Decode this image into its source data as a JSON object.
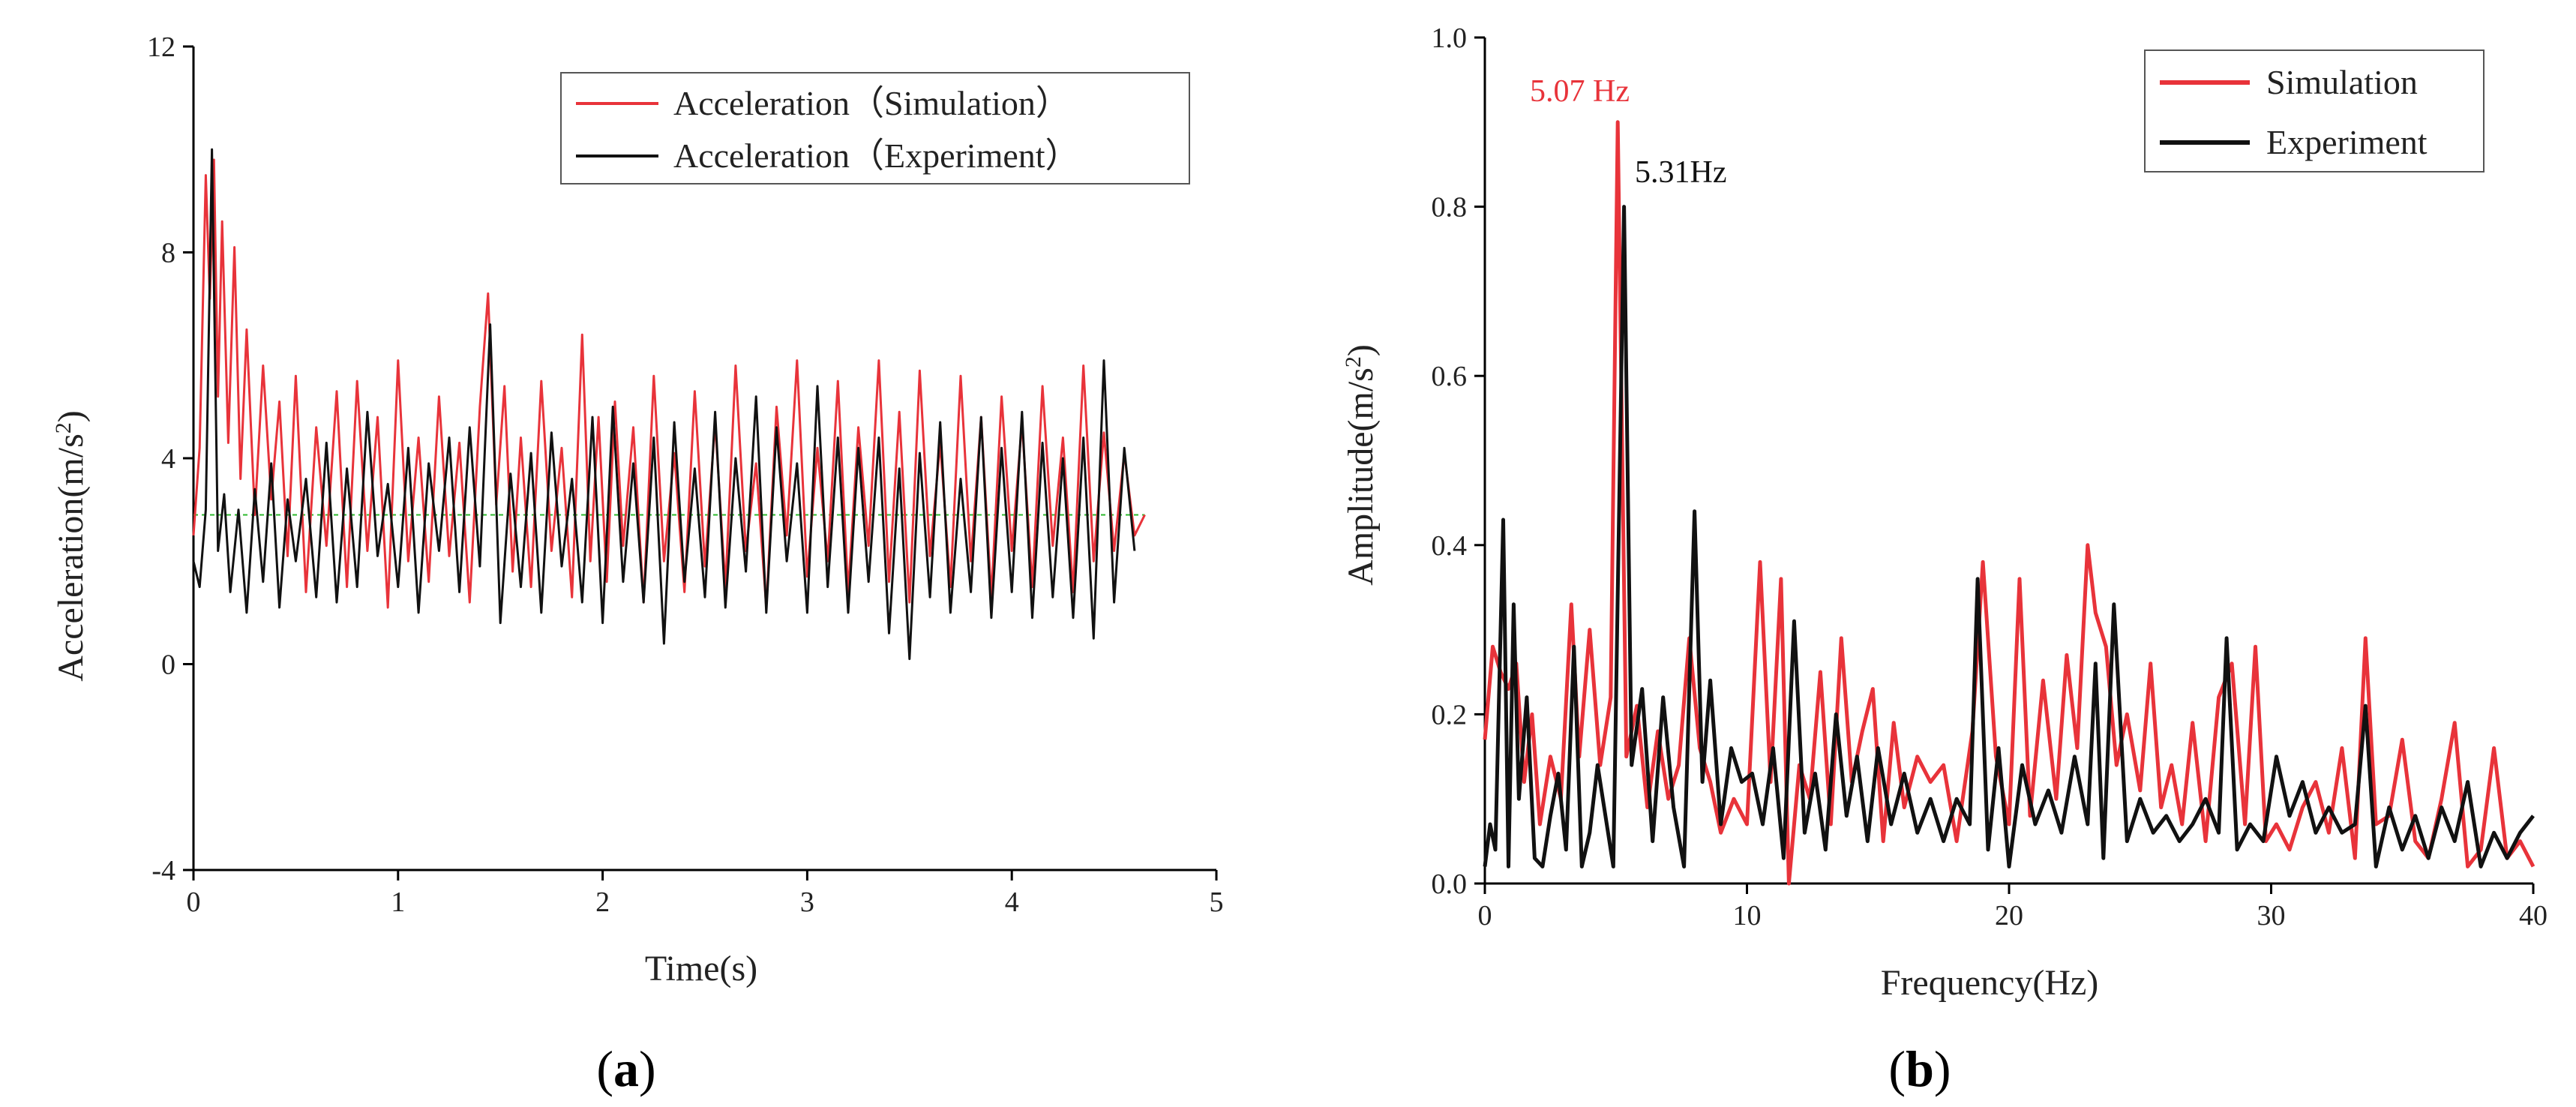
{
  "chart_data": [
    {
      "id": "a",
      "type": "line",
      "panel_label": "a",
      "title": "",
      "xlabel": "Time(s)",
      "ylabel_prefix": "Acceleration(m/s",
      "ylabel_sup": "2",
      "ylabel_suffix": ")",
      "xlim": [
        0,
        5
      ],
      "ylim": [
        -4,
        12
      ],
      "xticks": [
        0,
        1,
        2,
        3,
        4,
        5
      ],
      "yticks": [
        -4,
        0,
        4,
        8,
        12
      ],
      "legend_position": "top-right",
      "series": [
        {
          "name": "Acceleration（Simulation）",
          "color": "#e8333a",
          "x": [
            0.0,
            0.03,
            0.06,
            0.08,
            0.1,
            0.12,
            0.14,
            0.17,
            0.2,
            0.23,
            0.26,
            0.3,
            0.34,
            0.38,
            0.42,
            0.46,
            0.5,
            0.55,
            0.6,
            0.65,
            0.7,
            0.75,
            0.8,
            0.85,
            0.9,
            0.95,
            1.0,
            1.05,
            1.1,
            1.15,
            1.2,
            1.25,
            1.3,
            1.35,
            1.4,
            1.44,
            1.48,
            1.52,
            1.56,
            1.6,
            1.65,
            1.7,
            1.75,
            1.8,
            1.85,
            1.9,
            1.94,
            1.98,
            2.02,
            2.06,
            2.1,
            2.15,
            2.2,
            2.25,
            2.3,
            2.35,
            2.4,
            2.45,
            2.5,
            2.55,
            2.6,
            2.65,
            2.7,
            2.75,
            2.8,
            2.85,
            2.9,
            2.95,
            3.0,
            3.05,
            3.1,
            3.15,
            3.2,
            3.25,
            3.3,
            3.35,
            3.4,
            3.45,
            3.5,
            3.55,
            3.6,
            3.65,
            3.7,
            3.75,
            3.8,
            3.85,
            3.9,
            3.95,
            4.0,
            4.05,
            4.1,
            4.15,
            4.2,
            4.25,
            4.3,
            4.35,
            4.4,
            4.45,
            4.5,
            4.55,
            4.6,
            4.65
          ],
          "y": [
            2.5,
            4.2,
            9.5,
            7.1,
            9.8,
            5.2,
            8.6,
            4.3,
            8.1,
            3.6,
            6.5,
            2.9,
            5.8,
            3.2,
            5.1,
            2.1,
            5.6,
            1.4,
            4.6,
            2.3,
            5.3,
            1.5,
            5.5,
            2.2,
            4.8,
            1.1,
            5.9,
            2.0,
            4.4,
            1.6,
            5.2,
            2.1,
            4.3,
            1.2,
            5.0,
            7.2,
            3.1,
            5.4,
            1.8,
            4.4,
            1.5,
            5.5,
            2.2,
            4.2,
            1.3,
            6.4,
            2.0,
            4.8,
            1.6,
            5.1,
            2.3,
            4.6,
            1.2,
            5.6,
            2.0,
            4.1,
            1.4,
            5.3,
            1.9,
            4.7,
            1.5,
            5.8,
            2.2,
            3.9,
            1.1,
            5.0,
            2.5,
            5.9,
            1.7,
            4.2,
            2.0,
            5.5,
            1.4,
            4.6,
            2.3,
            5.9,
            1.6,
            4.9,
            1.2,
            5.7,
            2.1,
            4.3,
            1.5,
            5.6,
            2.0,
            4.8,
            1.3,
            5.2,
            2.2,
            4.7,
            1.5,
            5.4,
            2.3,
            4.4,
            1.4,
            5.8,
            2.0,
            4.5,
            2.2,
            4.1,
            2.5,
            2.9
          ]
        },
        {
          "name": "Acceleration（Experiment）",
          "color": "#111111",
          "x": [
            0.0,
            0.03,
            0.06,
            0.09,
            0.12,
            0.15,
            0.18,
            0.22,
            0.26,
            0.3,
            0.34,
            0.38,
            0.42,
            0.46,
            0.5,
            0.55,
            0.6,
            0.65,
            0.7,
            0.75,
            0.8,
            0.85,
            0.9,
            0.95,
            1.0,
            1.05,
            1.1,
            1.15,
            1.2,
            1.25,
            1.3,
            1.35,
            1.4,
            1.45,
            1.5,
            1.55,
            1.6,
            1.65,
            1.7,
            1.75,
            1.8,
            1.85,
            1.9,
            1.95,
            2.0,
            2.05,
            2.1,
            2.15,
            2.2,
            2.25,
            2.3,
            2.35,
            2.4,
            2.45,
            2.5,
            2.55,
            2.6,
            2.65,
            2.7,
            2.75,
            2.8,
            2.85,
            2.9,
            2.95,
            3.0,
            3.05,
            3.1,
            3.15,
            3.2,
            3.25,
            3.3,
            3.35,
            3.4,
            3.45,
            3.5,
            3.55,
            3.6,
            3.65,
            3.7,
            3.75,
            3.8,
            3.85,
            3.9,
            3.95,
            4.0,
            4.05,
            4.1,
            4.15,
            4.2,
            4.25,
            4.3,
            4.35,
            4.4,
            4.45,
            4.5,
            4.55,
            4.6
          ],
          "y": [
            2.0,
            1.5,
            3.0,
            10.0,
            2.2,
            3.3,
            1.4,
            3.0,
            1.0,
            3.4,
            1.6,
            3.9,
            1.1,
            3.2,
            2.0,
            3.6,
            1.3,
            4.3,
            1.2,
            3.8,
            1.5,
            4.9,
            2.1,
            3.5,
            1.5,
            4.2,
            1.0,
            3.9,
            2.2,
            4.4,
            1.4,
            4.6,
            1.9,
            6.6,
            0.8,
            3.7,
            1.5,
            4.1,
            1.0,
            4.5,
            1.9,
            3.6,
            1.2,
            4.8,
            0.8,
            5.0,
            1.6,
            3.9,
            1.2,
            4.4,
            0.4,
            4.7,
            1.6,
            3.8,
            1.3,
            4.9,
            1.1,
            4.0,
            1.8,
            5.2,
            1.0,
            4.6,
            2.0,
            3.9,
            1.0,
            5.4,
            1.5,
            4.4,
            1.0,
            4.2,
            1.6,
            4.4,
            0.6,
            3.8,
            0.1,
            4.1,
            1.3,
            4.7,
            1.0,
            3.6,
            1.4,
            4.8,
            0.9,
            4.2,
            1.4,
            4.9,
            0.9,
            4.3,
            1.3,
            4.0,
            0.9,
            4.4,
            0.5,
            5.9,
            1.2,
            4.2,
            2.2
          ]
        }
      ],
      "reference_line": {
        "y": 2.9,
        "color": "#2db82d"
      }
    },
    {
      "id": "b",
      "type": "line",
      "panel_label": "b",
      "title": "",
      "xlabel": "Frequency(Hz)",
      "ylabel_prefix": "Amplitude(m/s",
      "ylabel_sup": "2",
      "ylabel_suffix": ")",
      "xlim": [
        0,
        40
      ],
      "ylim": [
        0,
        1.0
      ],
      "xticks": [
        0,
        10,
        20,
        30,
        40
      ],
      "yticks": [
        0.0,
        0.2,
        0.4,
        0.6,
        0.8,
        1.0
      ],
      "ytick_labels": [
        "0.0",
        "0.2",
        "0.4",
        "0.6",
        "0.8",
        "1.0"
      ],
      "legend_position": "top-right",
      "annotations": [
        {
          "text": "5.07 Hz",
          "x": 5.07,
          "y": 0.9,
          "color": "#e8333a"
        },
        {
          "text": "5.31Hz",
          "x": 5.31,
          "y": 0.8,
          "color": "#111111"
        }
      ],
      "series": [
        {
          "name": "Simulation",
          "color": "#e8333a",
          "x": [
            0.0,
            0.3,
            0.6,
            0.9,
            1.2,
            1.5,
            1.8,
            2.1,
            2.5,
            2.9,
            3.3,
            3.6,
            4.0,
            4.4,
            4.8,
            5.07,
            5.4,
            5.8,
            6.2,
            6.6,
            7.0,
            7.4,
            7.8,
            8.2,
            8.6,
            9.0,
            9.5,
            10.0,
            10.5,
            10.9,
            11.3,
            11.6,
            12.0,
            12.4,
            12.8,
            13.2,
            13.6,
            14.0,
            14.4,
            14.8,
            15.2,
            15.6,
            16.0,
            16.5,
            17.0,
            17.5,
            18.0,
            18.6,
            19.0,
            19.5,
            20.0,
            20.4,
            20.8,
            21.3,
            21.8,
            22.2,
            22.6,
            23.0,
            23.3,
            23.7,
            24.1,
            24.5,
            25.0,
            25.4,
            25.8,
            26.2,
            26.6,
            27.0,
            27.5,
            28.0,
            28.5,
            29.0,
            29.4,
            29.8,
            30.2,
            30.7,
            31.2,
            31.7,
            32.2,
            32.7,
            33.2,
            33.6,
            34.0,
            34.5,
            35.0,
            35.5,
            36.0,
            36.5,
            37.0,
            37.5,
            38.0,
            38.5,
            39.0,
            39.5,
            40.0
          ],
          "y": [
            0.17,
            0.28,
            0.25,
            0.23,
            0.26,
            0.12,
            0.2,
            0.07,
            0.15,
            0.1,
            0.33,
            0.15,
            0.3,
            0.14,
            0.22,
            0.9,
            0.15,
            0.21,
            0.09,
            0.18,
            0.1,
            0.14,
            0.29,
            0.16,
            0.12,
            0.06,
            0.1,
            0.07,
            0.38,
            0.12,
            0.36,
            0.0,
            0.14,
            0.1,
            0.25,
            0.07,
            0.29,
            0.12,
            0.18,
            0.23,
            0.05,
            0.19,
            0.09,
            0.15,
            0.12,
            0.14,
            0.05,
            0.18,
            0.38,
            0.15,
            0.07,
            0.36,
            0.08,
            0.24,
            0.1,
            0.27,
            0.16,
            0.4,
            0.32,
            0.28,
            0.14,
            0.2,
            0.11,
            0.26,
            0.09,
            0.14,
            0.07,
            0.19,
            0.05,
            0.22,
            0.26,
            0.07,
            0.28,
            0.05,
            0.07,
            0.04,
            0.09,
            0.12,
            0.06,
            0.16,
            0.03,
            0.29,
            0.07,
            0.08,
            0.17,
            0.05,
            0.03,
            0.1,
            0.19,
            0.02,
            0.04,
            0.16,
            0.03,
            0.05,
            0.02
          ]
        },
        {
          "name": "Experiment",
          "color": "#111111",
          "x": [
            0.0,
            0.2,
            0.4,
            0.7,
            0.9,
            1.1,
            1.3,
            1.6,
            1.9,
            2.2,
            2.5,
            2.8,
            3.1,
            3.4,
            3.7,
            4.0,
            4.3,
            4.6,
            4.9,
            5.31,
            5.6,
            6.0,
            6.4,
            6.8,
            7.2,
            7.6,
            8.0,
            8.3,
            8.6,
            9.0,
            9.4,
            9.8,
            10.2,
            10.6,
            11.0,
            11.4,
            11.8,
            12.2,
            12.6,
            13.0,
            13.4,
            13.8,
            14.2,
            14.6,
            15.0,
            15.5,
            16.0,
            16.5,
            17.0,
            17.5,
            18.0,
            18.5,
            18.8,
            19.2,
            19.6,
            20.0,
            20.5,
            21.0,
            21.5,
            22.0,
            22.5,
            23.0,
            23.3,
            23.6,
            24.0,
            24.5,
            25.0,
            25.5,
            26.0,
            26.5,
            27.0,
            27.5,
            28.0,
            28.3,
            28.7,
            29.2,
            29.7,
            30.2,
            30.7,
            31.2,
            31.7,
            32.2,
            32.7,
            33.2,
            33.6,
            34.0,
            34.5,
            35.0,
            35.5,
            36.0,
            36.5,
            37.0,
            37.5,
            38.0,
            38.5,
            39.0,
            39.5,
            40.0
          ],
          "y": [
            0.02,
            0.07,
            0.04,
            0.43,
            0.02,
            0.33,
            0.1,
            0.22,
            0.03,
            0.02,
            0.08,
            0.13,
            0.04,
            0.28,
            0.02,
            0.06,
            0.14,
            0.08,
            0.02,
            0.8,
            0.14,
            0.23,
            0.05,
            0.22,
            0.09,
            0.02,
            0.44,
            0.12,
            0.24,
            0.07,
            0.16,
            0.12,
            0.13,
            0.07,
            0.16,
            0.03,
            0.31,
            0.06,
            0.13,
            0.04,
            0.2,
            0.08,
            0.15,
            0.05,
            0.16,
            0.07,
            0.13,
            0.06,
            0.1,
            0.05,
            0.1,
            0.07,
            0.36,
            0.04,
            0.16,
            0.02,
            0.14,
            0.07,
            0.11,
            0.06,
            0.15,
            0.07,
            0.26,
            0.03,
            0.33,
            0.05,
            0.1,
            0.06,
            0.08,
            0.05,
            0.07,
            0.1,
            0.06,
            0.29,
            0.04,
            0.07,
            0.05,
            0.15,
            0.08,
            0.12,
            0.06,
            0.09,
            0.06,
            0.07,
            0.21,
            0.02,
            0.09,
            0.04,
            0.08,
            0.03,
            0.09,
            0.05,
            0.12,
            0.02,
            0.06,
            0.03,
            0.06,
            0.08
          ]
        }
      ]
    }
  ]
}
